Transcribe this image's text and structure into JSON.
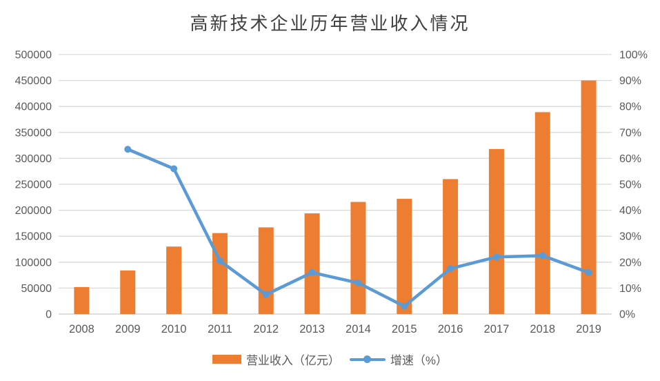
{
  "chart": {
    "title": "高新技术企业历年营业收入情况"
  },
  "chart_data": {
    "type": "combo",
    "title": "高新技术企业历年营业收入情况",
    "categories": [
      "2008",
      "2009",
      "2010",
      "2011",
      "2012",
      "2013",
      "2014",
      "2015",
      "2016",
      "2017",
      "2018",
      "2019"
    ],
    "series": [
      {
        "name": "营业收入（亿元）",
        "type": "bar",
        "axis": "left",
        "color": "#ED7D31",
        "values": [
          52000,
          84000,
          130000,
          156000,
          167000,
          194000,
          216000,
          222000,
          260000,
          318000,
          389000,
          450000
        ]
      },
      {
        "name": "增速（%）",
        "type": "line",
        "axis": "right",
        "color": "#5B9BD5",
        "values": [
          null,
          63.5,
          56,
          20.5,
          7.5,
          16,
          12,
          3,
          17.5,
          22,
          22.5,
          16
        ]
      }
    ],
    "left_axis": {
      "min": 0,
      "max": 500000,
      "step": 50000
    },
    "right_axis": {
      "min": 0,
      "max": 100,
      "step": 10,
      "suffix": "%"
    },
    "grid": true,
    "legend_position": "bottom",
    "colors": {
      "gridline": "#D9D9D9",
      "axis_line": "#C9C9C9",
      "tick_label": "#595959",
      "title": "#404040",
      "background": "#FFFFFF"
    }
  }
}
